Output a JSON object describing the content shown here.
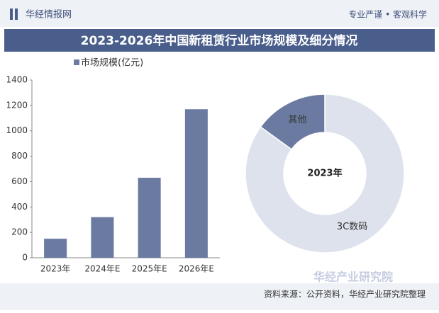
{
  "header": {
    "brand": "华经情报网",
    "slogan": "专业严谨 • 客观科学",
    "title": "2023-2026年中国新租赁行业市场规模及细分情况"
  },
  "chart_data": [
    {
      "type": "bar",
      "categories": [
        "2023年",
        "2024年E",
        "2025年E",
        "2026年E"
      ],
      "series": [
        {
          "name": "市场规模(亿元)",
          "color": "#6a7aa0",
          "values": [
            150,
            320,
            630,
            1170
          ]
        }
      ],
      "ylim": [
        0,
        1400
      ],
      "yticks": [
        0,
        200,
        400,
        600,
        800,
        1000,
        1200,
        1400
      ]
    },
    {
      "type": "pie",
      "center_label": "2023年",
      "categories": [
        "3C数码",
        "其他"
      ],
      "values": [
        85,
        15
      ],
      "colors": [
        "#dde2ec",
        "#6a7aa0"
      ]
    }
  ],
  "footer": {
    "source": "资料来源：公开资料，华经产业研究院整理",
    "logo": "华经产业研究院"
  }
}
